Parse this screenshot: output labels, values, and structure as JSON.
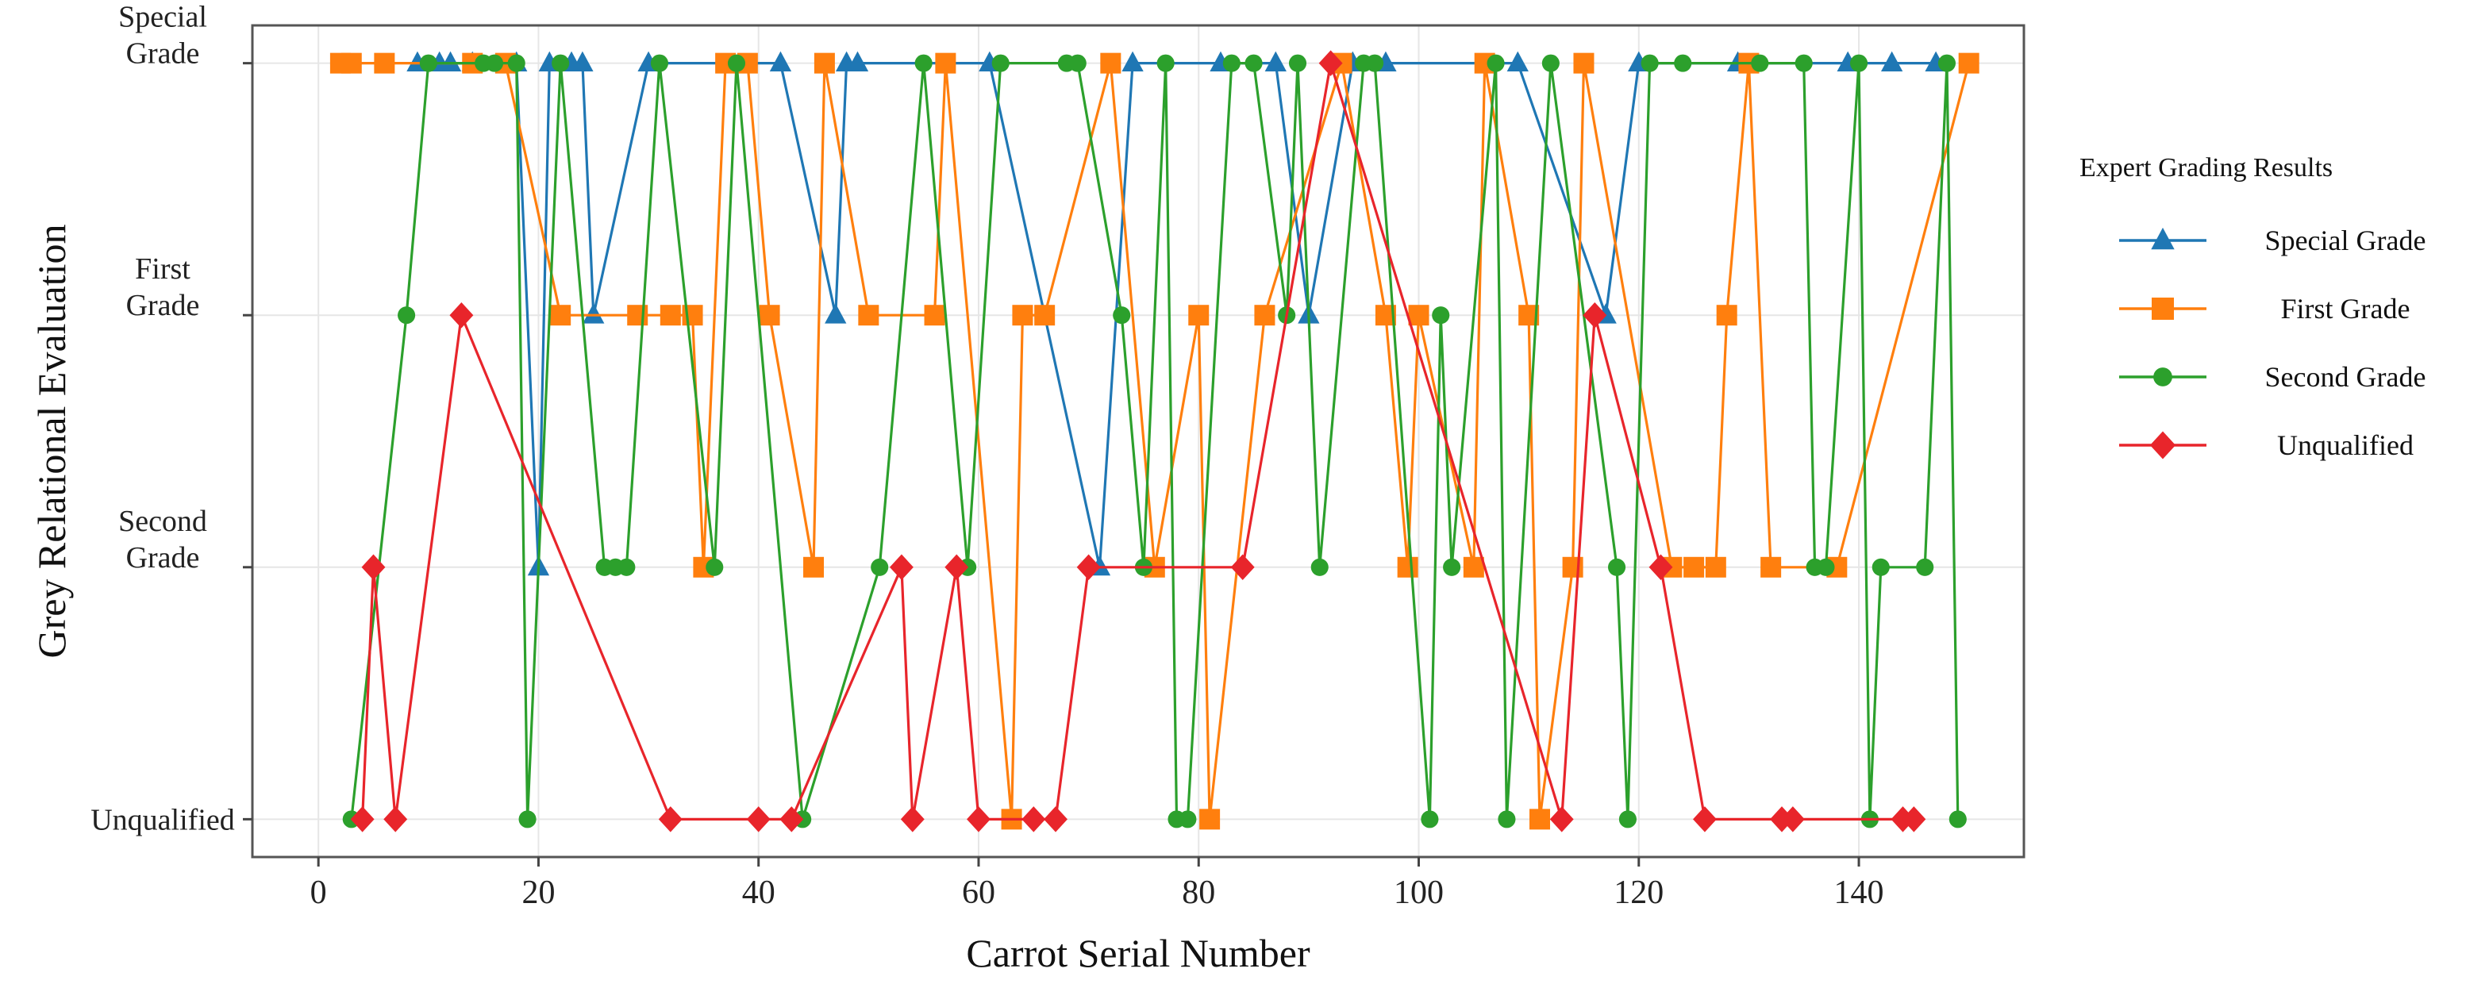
{
  "chart_data": {
    "type": "line",
    "xlabel": "Carrot Serial Number",
    "ylabel": "Grey Relational Evaluation",
    "xlim": [
      -6,
      155
    ],
    "ylim": [
      0.85,
      4.15
    ],
    "x_ticks": [
      0,
      20,
      40,
      60,
      80,
      100,
      120,
      140
    ],
    "y_ticks": [
      {
        "value": 1,
        "lines": [
          "Unqualified"
        ]
      },
      {
        "value": 2,
        "lines": [
          "Second",
          "Grade"
        ]
      },
      {
        "value": 3,
        "lines": [
          "First",
          "Grade"
        ]
      },
      {
        "value": 4,
        "lines": [
          "Special",
          "Grade"
        ]
      }
    ],
    "grid": true,
    "legend": {
      "title": "Expert Grading Results",
      "position": "right"
    },
    "series": [
      {
        "name": "Special Grade",
        "color": "#1f77b4",
        "marker": "triangle",
        "points": [
          [
            9,
            4
          ],
          [
            11,
            4
          ],
          [
            12,
            4
          ],
          [
            14,
            4
          ],
          [
            18,
            4
          ],
          [
            20,
            2
          ],
          [
            21,
            4
          ],
          [
            23,
            4
          ],
          [
            24,
            4
          ],
          [
            25,
            3
          ],
          [
            30,
            4
          ],
          [
            42,
            4
          ],
          [
            47,
            3
          ],
          [
            48,
            4
          ],
          [
            49,
            4
          ],
          [
            61,
            4
          ],
          [
            71,
            2
          ],
          [
            74,
            4
          ],
          [
            82,
            4
          ],
          [
            87,
            4
          ],
          [
            90,
            3
          ],
          [
            94,
            4
          ],
          [
            97,
            4
          ],
          [
            109,
            4
          ],
          [
            117,
            3
          ],
          [
            120,
            4
          ],
          [
            129,
            4
          ],
          [
            139,
            4
          ],
          [
            143,
            4
          ],
          [
            147,
            4
          ]
        ]
      },
      {
        "name": "First Grade",
        "color": "#ff7f0e",
        "marker": "square",
        "points": [
          [
            2,
            4
          ],
          [
            3,
            4
          ],
          [
            6,
            4
          ],
          [
            14,
            4
          ],
          [
            17,
            4
          ],
          [
            22,
            3
          ],
          [
            29,
            3
          ],
          [
            32,
            3
          ],
          [
            34,
            3
          ],
          [
            35,
            2
          ],
          [
            37,
            4
          ],
          [
            39,
            4
          ],
          [
            41,
            3
          ],
          [
            45,
            2
          ],
          [
            46,
            4
          ],
          [
            50,
            3
          ],
          [
            56,
            3
          ],
          [
            57,
            4
          ],
          [
            63,
            1
          ],
          [
            64,
            3
          ],
          [
            66,
            3
          ],
          [
            72,
            4
          ],
          [
            76,
            2
          ],
          [
            80,
            3
          ],
          [
            81,
            1
          ],
          [
            86,
            3
          ],
          [
            93,
            4
          ],
          [
            97,
            3
          ],
          [
            99,
            2
          ],
          [
            100,
            3
          ],
          [
            105,
            2
          ],
          [
            106,
            4
          ],
          [
            110,
            3
          ],
          [
            111,
            1
          ],
          [
            114,
            2
          ],
          [
            115,
            4
          ],
          [
            123,
            2
          ],
          [
            125,
            2
          ],
          [
            127,
            2
          ],
          [
            128,
            3
          ],
          [
            130,
            4
          ],
          [
            132,
            2
          ],
          [
            138,
            2
          ],
          [
            150,
            4
          ]
        ]
      },
      {
        "name": "Second Grade",
        "color": "#2ca02c",
        "marker": "circle",
        "points": [
          [
            3,
            1
          ],
          [
            8,
            3
          ],
          [
            10,
            4
          ],
          [
            15,
            4
          ],
          [
            16,
            4
          ],
          [
            18,
            4
          ],
          [
            19,
            1
          ],
          [
            22,
            4
          ],
          [
            26,
            2
          ],
          [
            27,
            2
          ],
          [
            28,
            2
          ],
          [
            31,
            4
          ],
          [
            36,
            2
          ],
          [
            38,
            4
          ],
          [
            44,
            1
          ],
          [
            51,
            2
          ],
          [
            55,
            4
          ],
          [
            59,
            2
          ],
          [
            62,
            4
          ],
          [
            68,
            4
          ],
          [
            69,
            4
          ],
          [
            73,
            3
          ],
          [
            75,
            2
          ],
          [
            77,
            4
          ],
          [
            78,
            1
          ],
          [
            79,
            1
          ],
          [
            83,
            4
          ],
          [
            85,
            4
          ],
          [
            88,
            3
          ],
          [
            89,
            4
          ],
          [
            91,
            2
          ],
          [
            95,
            4
          ],
          [
            96,
            4
          ],
          [
            101,
            1
          ],
          [
            102,
            3
          ],
          [
            103,
            2
          ],
          [
            107,
            4
          ],
          [
            108,
            1
          ],
          [
            112,
            4
          ],
          [
            118,
            2
          ],
          [
            119,
            1
          ],
          [
            121,
            4
          ],
          [
            124,
            4
          ],
          [
            131,
            4
          ],
          [
            135,
            4
          ],
          [
            136,
            2
          ],
          [
            137,
            2
          ],
          [
            140,
            4
          ],
          [
            141,
            1
          ],
          [
            142,
            2
          ],
          [
            146,
            2
          ],
          [
            148,
            4
          ],
          [
            149,
            1
          ]
        ]
      },
      {
        "name": "Unqualified",
        "color": "#e8252b",
        "marker": "diamond",
        "points": [
          [
            4,
            1
          ],
          [
            5,
            2
          ],
          [
            7,
            1
          ],
          [
            13,
            3
          ],
          [
            32,
            1
          ],
          [
            40,
            1
          ],
          [
            43,
            1
          ],
          [
            53,
            2
          ],
          [
            54,
            1
          ],
          [
            58,
            2
          ],
          [
            60,
            1
          ],
          [
            65,
            1
          ],
          [
            67,
            1
          ],
          [
            70,
            2
          ],
          [
            84,
            2
          ],
          [
            92,
            4
          ],
          [
            113,
            1
          ],
          [
            116,
            3
          ],
          [
            122,
            2
          ],
          [
            126,
            1
          ],
          [
            133,
            1
          ],
          [
            134,
            1
          ],
          [
            144,
            1
          ],
          [
            145,
            1
          ]
        ]
      }
    ]
  }
}
